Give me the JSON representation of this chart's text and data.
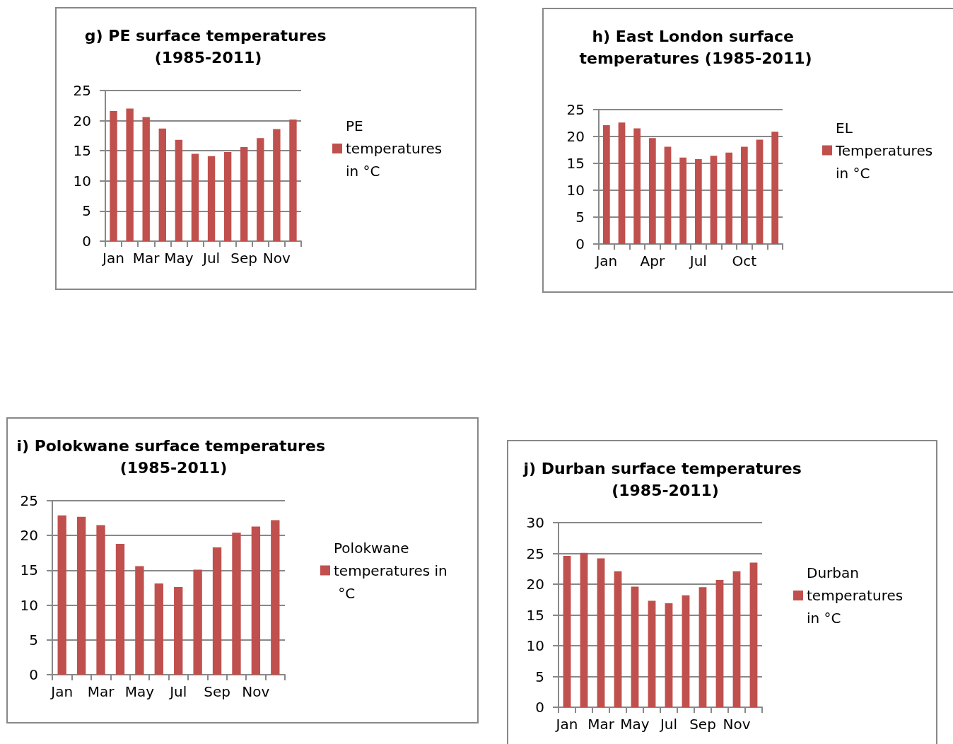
{
  "chart_data": [
    {
      "type": "bar",
      "title": "g) PE surface temperatures (1985-2011)",
      "categories": [
        "Jan",
        null,
        "Mar",
        null,
        "May",
        null,
        "Jul",
        null,
        "Sep",
        null,
        "Nov",
        null
      ],
      "series": [
        {
          "name": "PE temperatures in °C",
          "color": "#c0504d",
          "values": [
            21.6,
            22.0,
            20.6,
            18.7,
            16.8,
            14.5,
            14.1,
            14.8,
            15.6,
            17.1,
            18.6,
            20.2
          ]
        }
      ],
      "ylim": [
        0,
        25
      ],
      "yticks": [
        0,
        5,
        10,
        15,
        20,
        25
      ],
      "grid": "y",
      "legend": "right"
    },
    {
      "type": "bar",
      "title": "h) East London surface temperatures (1985-2011)",
      "categories": [
        "Jan",
        null,
        null,
        "Apr",
        null,
        null,
        "Jul",
        null,
        null,
        "Oct",
        null,
        null
      ],
      "series": [
        {
          "name": "EL Temperatures in °C",
          "color": "#c0504d",
          "values": [
            22.1,
            22.6,
            21.5,
            19.7,
            18.1,
            16.1,
            15.8,
            16.4,
            17.0,
            18.1,
            19.4,
            20.9
          ]
        }
      ],
      "ylim": [
        0,
        25
      ],
      "yticks": [
        0,
        5,
        10,
        15,
        20,
        25
      ],
      "grid": "y",
      "legend": "right"
    },
    {
      "type": "bar",
      "title": "i) Polokwane surface temperatures (1985-2011)",
      "categories": [
        "Jan",
        null,
        "Mar",
        null,
        "May",
        null,
        "Jul",
        null,
        "Sep",
        null,
        "Nov",
        null
      ],
      "series": [
        {
          "name": "Polokwane temperatures in °C",
          "color": "#c0504d",
          "values": [
            22.9,
            22.7,
            21.5,
            18.8,
            15.6,
            13.1,
            12.6,
            15.1,
            18.3,
            20.4,
            21.3,
            22.2
          ]
        }
      ],
      "ylim": [
        0,
        25
      ],
      "yticks": [
        0,
        5,
        10,
        15,
        20,
        25
      ],
      "grid": "y",
      "legend": "right"
    },
    {
      "type": "bar",
      "title": "j) Durban surface temperatures (1985-2011)",
      "categories": [
        "Jan",
        null,
        "Mar",
        null,
        "May",
        null,
        "Jul",
        null,
        "Sep",
        null,
        "Nov",
        null
      ],
      "series": [
        {
          "name": "Durban temperatures in °C",
          "color": "#c0504d",
          "values": [
            24.6,
            25.1,
            24.2,
            22.1,
            19.6,
            17.3,
            16.9,
            18.2,
            19.5,
            20.7,
            22.1,
            23.5
          ]
        }
      ],
      "ylim": [
        0,
        30
      ],
      "yticks": [
        0,
        5,
        10,
        15,
        20,
        25,
        30
      ],
      "grid": "y",
      "legend": "right"
    }
  ]
}
